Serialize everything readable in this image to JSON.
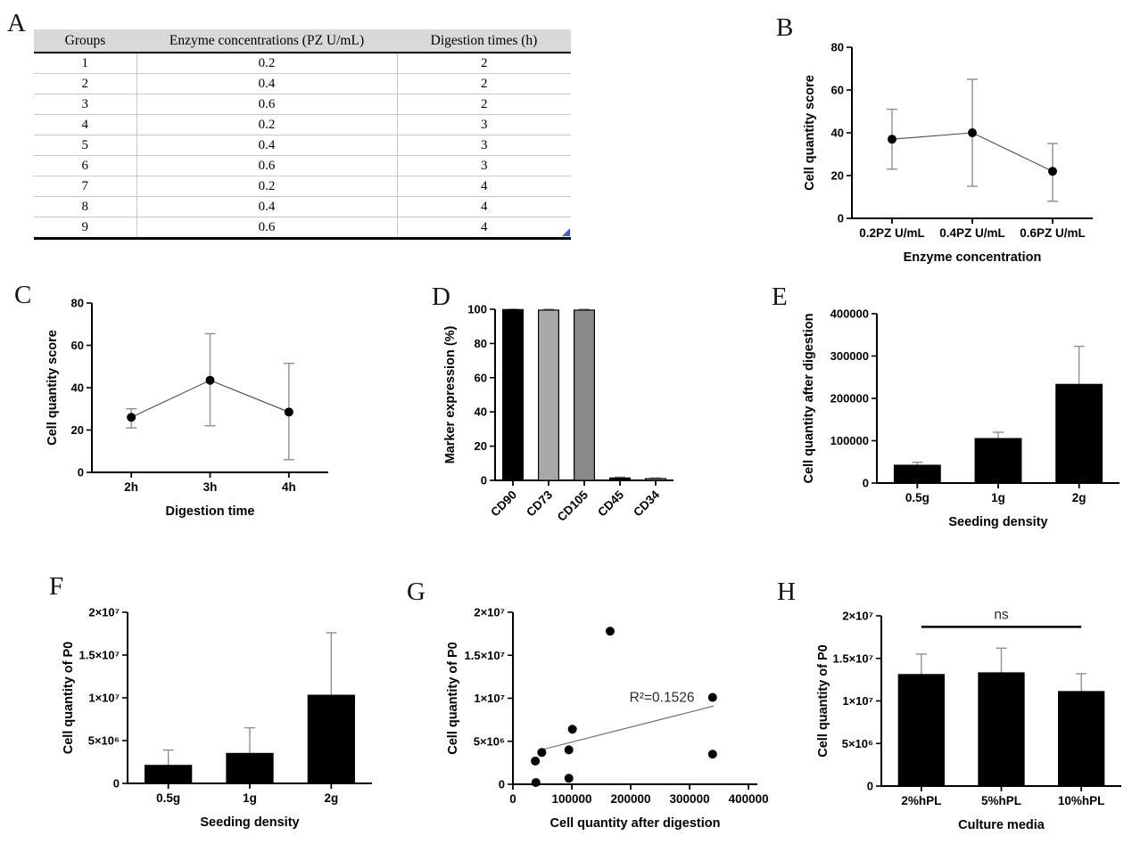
{
  "chart_data": [
    {
      "panel": "A",
      "type": "table",
      "columns": [
        "Groups",
        "Enzyme concentrations (PZ U/mL)",
        "Digestion times (h)"
      ],
      "rows": [
        [
          "1",
          "0.2",
          "2"
        ],
        [
          "2",
          "0.4",
          "2"
        ],
        [
          "3",
          "0.6",
          "2"
        ],
        [
          "4",
          "0.2",
          "3"
        ],
        [
          "5",
          "0.4",
          "3"
        ],
        [
          "6",
          "0.6",
          "3"
        ],
        [
          "7",
          "0.2",
          "4"
        ],
        [
          "8",
          "0.4",
          "4"
        ],
        [
          "9",
          "0.6",
          "4"
        ]
      ],
      "header_bg": "#d9d9d9"
    },
    {
      "panel": "B",
      "type": "line",
      "categories": [
        "0.2PZ U/mL",
        "0.4PZ U/mL",
        "0.6PZ U/mL"
      ],
      "values": [
        37,
        40,
        22
      ],
      "err_low": [
        23,
        15,
        8
      ],
      "err_high": [
        51,
        65,
        35
      ],
      "ylabel": "Cell quantity score",
      "xlabel": "Enzyme concentration",
      "ylim": [
        0,
        80
      ],
      "yticks": [
        0,
        20,
        40,
        60,
        80
      ]
    },
    {
      "panel": "C",
      "type": "line",
      "categories": [
        "2h",
        "3h",
        "4h"
      ],
      "values": [
        26,
        43.5,
        28.5
      ],
      "err_low": [
        21,
        22,
        6
      ],
      "err_high": [
        30,
        65.5,
        51.5
      ],
      "ylabel": "Cell quantity score",
      "xlabel": "Digestion time",
      "ylim": [
        0,
        80
      ],
      "yticks": [
        0,
        20,
        40,
        60,
        80
      ]
    },
    {
      "panel": "D",
      "type": "bar",
      "categories": [
        "CD90",
        "CD73",
        "CD105",
        "CD45",
        "CD34"
      ],
      "values": [
        99.8,
        99.5,
        99.5,
        1.4,
        1.0
      ],
      "err_high": [
        100,
        100,
        100,
        1.9,
        1.4
      ],
      "bar_colors": [
        "#000000",
        "#a9a9a9",
        "#8a8a8a",
        "#000000",
        "#a9a9a9"
      ],
      "ylabel": "Marker expression (%)",
      "xlabel": "",
      "ylim": [
        0,
        100
      ],
      "yticks": [
        0,
        20,
        40,
        60,
        80,
        100
      ],
      "xtick_rotation": -45
    },
    {
      "panel": "E",
      "type": "bar",
      "categories": [
        "0.5g",
        "1g",
        "2g"
      ],
      "values": [
        42000,
        105000,
        233000
      ],
      "err_high": [
        49000,
        120000,
        323000
      ],
      "bar_colors": [
        "#000000",
        "#000000",
        "#000000"
      ],
      "ylabel": "Cell quantity after digestion",
      "xlabel": "Seeding density",
      "ylim": [
        0,
        400000
      ],
      "yticks": [
        0,
        100000,
        200000,
        300000,
        400000
      ],
      "ytick_labels": [
        "0",
        "100000",
        "200000",
        "300000",
        "400000"
      ]
    },
    {
      "panel": "F",
      "type": "bar",
      "categories": [
        "0.5g",
        "1g",
        "2g"
      ],
      "values": [
        2100000,
        3500000,
        10300000
      ],
      "err_high": [
        3900000,
        6500000,
        17600000
      ],
      "bar_colors": [
        "#000000",
        "#000000",
        "#000000"
      ],
      "ylabel": "Cell quantity of P0",
      "xlabel": "Seeding density",
      "ylim": [
        0,
        20000000
      ],
      "yticks": [
        0,
        5000000,
        10000000,
        15000000,
        20000000
      ],
      "ytick_labels": [
        "0",
        "5×10⁶",
        "1×10⁷",
        "1.5×10⁷",
        "2×10⁷"
      ]
    },
    {
      "panel": "G",
      "type": "scatter",
      "points": [
        [
          39000,
          200000
        ],
        [
          38000,
          2700000
        ],
        [
          49000,
          3700000
        ],
        [
          95000,
          700000
        ],
        [
          95000,
          4000000
        ],
        [
          101000,
          6400000
        ],
        [
          165000,
          17800000
        ],
        [
          339000,
          10100000
        ],
        [
          339000,
          3500000
        ]
      ],
      "trendline": {
        "x1": 42000,
        "y1": 3900000,
        "x2": 341000,
        "y2": 9100000
      },
      "annotation": {
        "text": "R²=0.1526",
        "x": 253000,
        "y": 9600000
      },
      "ylabel": "Cell quantity of P0",
      "xlabel": "Cell quantity after digestion",
      "xlim": [
        0,
        415000
      ],
      "xticks": [
        0,
        100000,
        200000,
        300000,
        400000
      ],
      "xtick_labels": [
        "0",
        "100000",
        "200000",
        "300000",
        "400000"
      ],
      "ylim": [
        0,
        20000000
      ],
      "yticks": [
        0,
        5000000,
        10000000,
        15000000,
        20000000
      ],
      "ytick_labels": [
        "0",
        "5×10⁶",
        "1×10⁷",
        "1.5×10⁷",
        "2×10⁷"
      ]
    },
    {
      "panel": "H",
      "type": "bar",
      "categories": [
        "2%hPL",
        "5%hPL",
        "10%hPL"
      ],
      "values": [
        13100000,
        13300000,
        11100000
      ],
      "err_high": [
        15500000,
        16200000,
        13200000
      ],
      "bar_colors": [
        "#000000",
        "#000000",
        "#000000"
      ],
      "ylabel": "Cell quantity of P0",
      "xlabel": "Culture media",
      "ylim": [
        0,
        20000000
      ],
      "yticks": [
        0,
        5000000,
        10000000,
        15000000,
        20000000
      ],
      "ytick_labels": [
        "0",
        "5×10⁶",
        "1×10⁷",
        "1.5×10⁷",
        "2×10⁷"
      ],
      "significance": {
        "text": "ns",
        "y": 18700000,
        "from": 0,
        "to": 2
      }
    }
  ]
}
